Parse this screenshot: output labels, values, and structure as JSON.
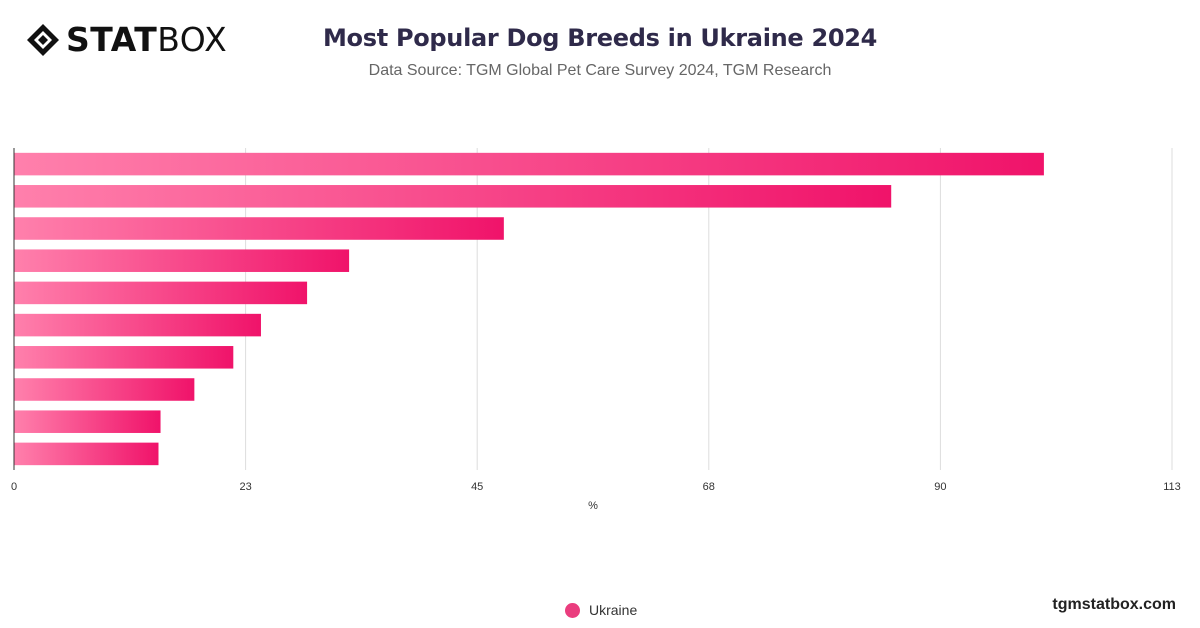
{
  "header": {
    "logo_text_bold": "STAT",
    "logo_text_light": "BOX",
    "title": "Most Popular Dog Breeds in Ukraine 2024",
    "subtitle": "Data Source: TGM Global Pet Care Survey 2024, TGM Research"
  },
  "chart_data": {
    "type": "bar",
    "orientation": "horizontal",
    "title": "Most Popular Dog Breeds in Ukraine 2024",
    "subtitle": "Data Source: TGM Global Pet Care Survey 2024, TGM Research",
    "xlabel": "%",
    "ylabel": "",
    "xlim": [
      0,
      113
    ],
    "x_ticks": [
      "0",
      "23",
      "45",
      "68",
      "90",
      "113"
    ],
    "x_tick_values": [
      0,
      22.6,
      45.2,
      67.8,
      90.4,
      113
    ],
    "categories": [
      "",
      "",
      "",
      "",
      "",
      "",
      "",
      "",
      "",
      ""
    ],
    "series": [
      {
        "name": "Ukraine",
        "values": [
          100.5,
          85.6,
          47.8,
          32.7,
          28.6,
          24.1,
          21.4,
          17.6,
          14.3,
          14.1
        ]
      }
    ],
    "grid": true,
    "legend": "bottom-center",
    "colors": {
      "bar_start": "#ff80ac",
      "bar_end": "#f0136a",
      "grid": "#dddddd",
      "axis": "#333333"
    }
  },
  "legend": {
    "label": "Ukraine",
    "color": "#ea3d7e"
  },
  "footer": {
    "brand": "tgmstatbox.com"
  }
}
